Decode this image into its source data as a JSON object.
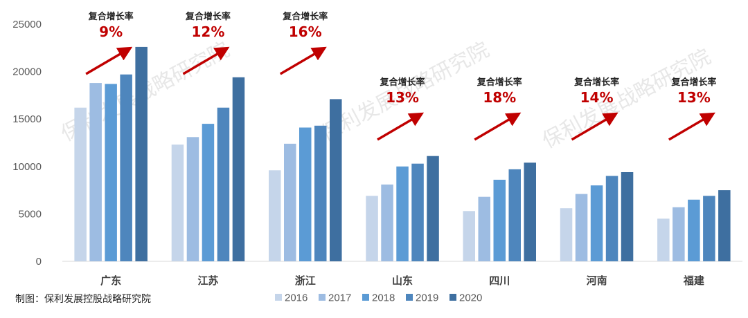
{
  "chart_data": {
    "type": "bar",
    "title": "",
    "xlabel": "",
    "ylabel": "",
    "ylim": [
      0,
      25000
    ],
    "yticks": [
      0,
      5000,
      10000,
      15000,
      20000,
      25000
    ],
    "categories": [
      "广东",
      "江苏",
      "浙江",
      "山东",
      "四川",
      "河南",
      "福建"
    ],
    "series": [
      {
        "name": "2016",
        "color": "#C5D5EA",
        "values": [
          16200,
          12300,
          9600,
          6900,
          5300,
          5600,
          4500
        ]
      },
      {
        "name": "2017",
        "color": "#9DBCE2",
        "values": [
          18800,
          13100,
          12400,
          8100,
          6800,
          7100,
          5700
        ]
      },
      {
        "name": "2018",
        "color": "#5B9BD5",
        "values": [
          18700,
          14500,
          14100,
          10000,
          8600,
          8000,
          6500
        ]
      },
      {
        "name": "2019",
        "color": "#4E86BD",
        "values": [
          19700,
          16200,
          14300,
          10300,
          9700,
          9000,
          6900
        ]
      },
      {
        "name": "2020",
        "color": "#3E6FA0",
        "values": [
          22600,
          19400,
          17100,
          11100,
          10400,
          9400,
          7500
        ]
      }
    ],
    "annotations": [
      {
        "category": "广东",
        "label": "复合增长率",
        "value": "9%"
      },
      {
        "category": "江苏",
        "label": "复合增长率",
        "value": "12%"
      },
      {
        "category": "浙江",
        "label": "复合增长率",
        "value": "16%"
      },
      {
        "category": "山东",
        "label": "复合增长率",
        "value": "13%"
      },
      {
        "category": "四川",
        "label": "复合增长率",
        "value": "18%"
      },
      {
        "category": "河南",
        "label": "复合增长率",
        "value": "14%"
      },
      {
        "category": "福建",
        "label": "复合增长率",
        "value": "13%"
      }
    ],
    "legend_position": "bottom",
    "grid": false,
    "arrow_color": "#C00000"
  },
  "credit": "制图：保利发展控股战略研究院",
  "watermark": "保利发展战略研究院"
}
